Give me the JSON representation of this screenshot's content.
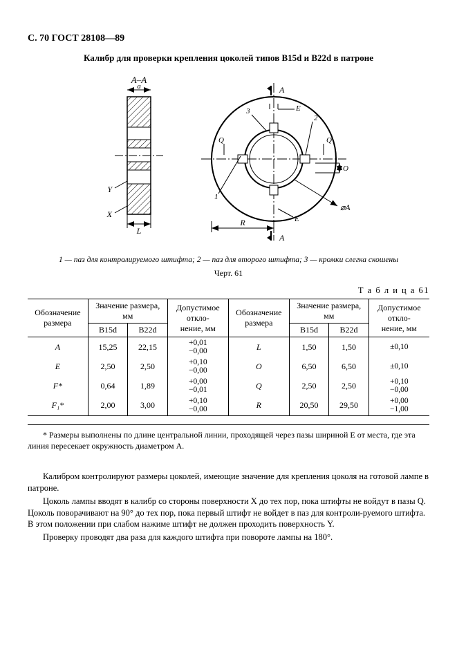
{
  "page_header": "С. 70 ГОСТ 28108—89",
  "title": "Калибр для проверки крепления цоколей типов B15d и B22d в патроне",
  "diagram": {
    "labels": {
      "section": "A–A",
      "a": "a",
      "Y": "Y",
      "X": "X",
      "L": "L",
      "A_top": "A",
      "A_bottom": "A",
      "E_top": "E",
      "E_bottom": "E",
      "Q_left": "Q",
      "Q_right": "Q",
      "O": "O",
      "phiA": "⌀A",
      "R": "R",
      "n1": "1",
      "n2": "2",
      "n3": "3"
    },
    "stroke": "#000000",
    "hatch": "#000000",
    "bg": "#ffffff"
  },
  "legend": {
    "n1": "1 —",
    "t1": "паз для контролируемого штифта;",
    "n2": "2 —",
    "t2": "паз для второго штифта;",
    "n3": "3 —",
    "t3": "кромки слегка скошены"
  },
  "fig_label": "Черт. 61",
  "table": {
    "caption": "Т а б л и ц а   61",
    "head": {
      "param": "Обозначение размера",
      "value_group": "Значение размера, мм",
      "tol": "Допустимое откло-\nнение, мм",
      "b15d": "B15d",
      "b22d": "B22d"
    },
    "left_rows": [
      {
        "sym": "A",
        "b15": "15,25",
        "b22": "22,15",
        "tol_plus": "+0,01",
        "tol_minus": "−0,00"
      },
      {
        "sym": "E",
        "b15": "2,50",
        "b22": "2,50",
        "tol_plus": "+0,10",
        "tol_minus": "−0,00"
      },
      {
        "sym": "F*",
        "b15": "0,64",
        "b22": "1,89",
        "tol_plus": "+0,00",
        "tol_minus": "−0,01"
      },
      {
        "sym": "F₁*",
        "b15": "2,00",
        "b22": "3,00",
        "tol_plus": "+0,10",
        "tol_minus": "−0,00"
      }
    ],
    "right_rows": [
      {
        "sym": "L",
        "b15": "1,50",
        "b22": "1,50",
        "tol_plus": "±0,10",
        "tol_minus": ""
      },
      {
        "sym": "O",
        "b15": "6,50",
        "b22": "6,50",
        "tol_plus": "±0,10",
        "tol_minus": ""
      },
      {
        "sym": "Q",
        "b15": "2,50",
        "b22": "2,50",
        "tol_plus": "+0,10",
        "tol_minus": "−0,00"
      },
      {
        "sym": "R",
        "b15": "20,50",
        "b22": "29,50",
        "tol_plus": "+0,00",
        "tol_minus": "−1,00"
      }
    ]
  },
  "footnote": "* Размеры выполнены по длине центральной линии, проходящей через пазы шириной E от места, где эта линия пересекает окружность диаметром A.",
  "paras": [
    "Калибром контролируют размеры цоколей, имеющие значение для крепления цоколя на готовой лампе в патроне.",
    "Цоколь лампы вводят в калибр со стороны поверхности X до тех пор, пока штифты не войдут в пазы Q. Цоколь поворачивают на 90° до тех пор, пока первый штифт не войдет в паз для контроли-руемого штифта. В этом положении при слабом нажиме штифт не должен проходить поверхность Y.",
    "Проверку проводят два раза для каждого штифта при повороте лампы на 180°."
  ]
}
